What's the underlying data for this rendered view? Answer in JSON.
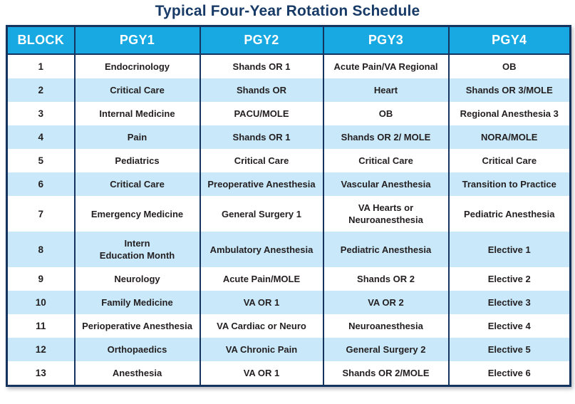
{
  "title": "Typical Four-Year Rotation Schedule",
  "colors": {
    "title_navy": "#173A67",
    "header_blue": "#18A9E2",
    "header_text": "#FFFFFF",
    "alt_row_blue": "#C9E8F9",
    "row_white": "#FFFFFF",
    "border_navy": "#14335E",
    "body_text": "#231F20"
  },
  "table": {
    "headers": [
      "BLOCK",
      "PGY1",
      "PGY2",
      "PGY3",
      "PGY4"
    ],
    "rows": [
      [
        "1",
        "Endocrinology",
        "Shands OR 1",
        "Acute Pain/VA Regional",
        "OB"
      ],
      [
        "2",
        "Critical Care",
        "Shands OR",
        "Heart",
        "Shands OR 3/MOLE"
      ],
      [
        "3",
        "Internal Medicine",
        "PACU/MOLE",
        "OB",
        "Regional Anesthesia 3"
      ],
      [
        "4",
        "Pain",
        "Shands OR 1",
        "Shands OR 2/ MOLE",
        "NORA/MOLE"
      ],
      [
        "5",
        "Pediatrics",
        "Critical Care",
        "Critical Care",
        "Critical Care"
      ],
      [
        "6",
        "Critical Care",
        "Preoperative Anesthesia",
        "Vascular Anesthesia",
        "Transition to Practice"
      ],
      [
        "7",
        "Emergency Medicine",
        "General Surgery 1",
        "VA Hearts or\nNeuroanesthesia",
        "Pediatric Anesthesia"
      ],
      [
        "8",
        "Intern\nEducation Month",
        "Ambulatory Anesthesia",
        "Pediatric Anesthesia",
        "Elective 1"
      ],
      [
        "9",
        "Neurology",
        "Acute Pain/MOLE",
        "Shands OR 2",
        "Elective 2"
      ],
      [
        "10",
        "Family Medicine",
        "VA OR 1",
        "VA OR 2",
        "Elective 3"
      ],
      [
        "11",
        "Perioperative Anesthesia",
        "VA Cardiac or Neuro",
        "Neuroanesthesia",
        "Elective 4"
      ],
      [
        "12",
        "Orthopaedics",
        "VA Chronic Pain",
        "General Surgery 2",
        "Elective 5"
      ],
      [
        "13",
        "Anesthesia",
        "VA OR 1",
        "Shands OR 2/MOLE",
        "Elective 6"
      ]
    ]
  }
}
